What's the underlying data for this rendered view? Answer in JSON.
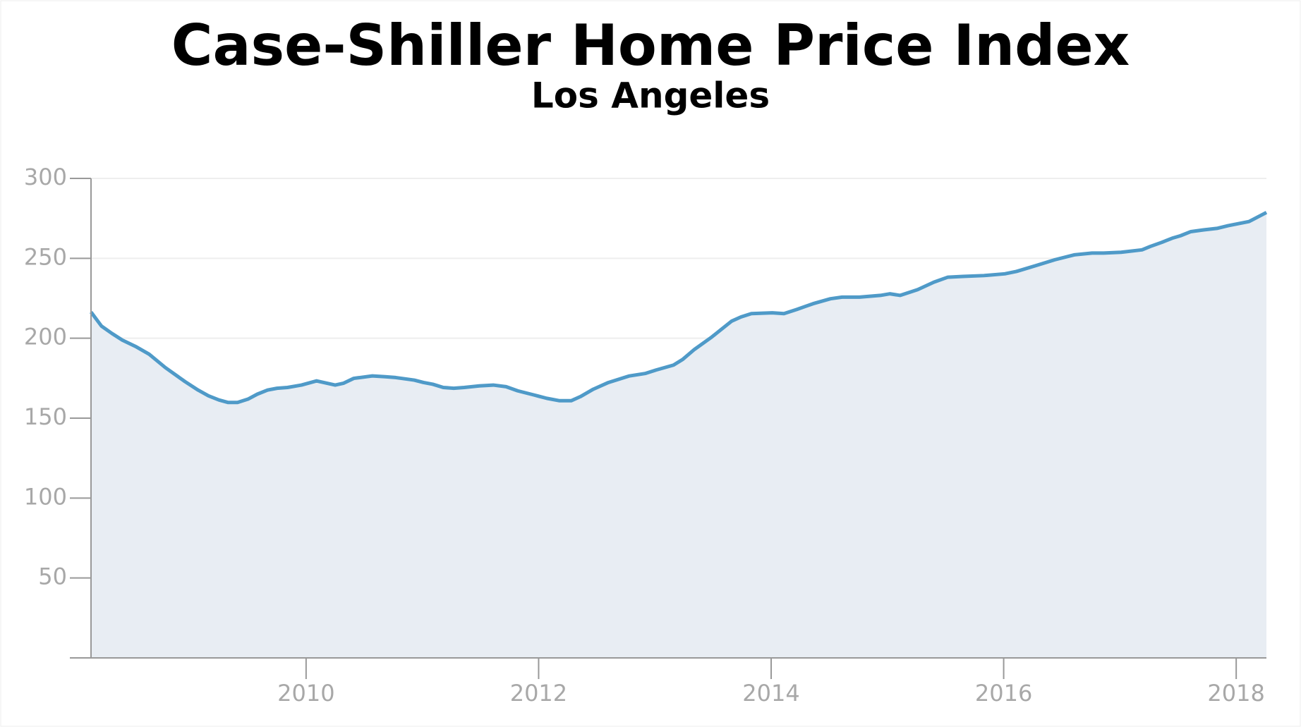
{
  "chart_data": {
    "type": "area",
    "title": "Case-Shiller Home Price Index",
    "subtitle": "Los Angeles",
    "x": [
      2008.15,
      2008.24,
      2008.33,
      2008.42,
      2008.54,
      2008.65,
      2008.79,
      2008.96,
      2009.07,
      2009.16,
      2009.25,
      2009.33,
      2009.41,
      2009.5,
      2009.58,
      2009.67,
      2009.75,
      2009.84,
      2009.96,
      2010.09,
      2010.25,
      2010.32,
      2010.41,
      2010.57,
      2010.68,
      2010.77,
      2010.87,
      2010.93,
      2011.01,
      2011.09,
      2011.18,
      2011.27,
      2011.36,
      2011.49,
      2011.61,
      2011.72,
      2011.82,
      2011.96,
      2012.07,
      2012.18,
      2012.28,
      2012.36,
      2012.47,
      2012.6,
      2012.78,
      2012.92,
      2013.01,
      2013.16,
      2013.24,
      2013.34,
      2013.49,
      2013.66,
      2013.74,
      2013.83,
      2014.01,
      2014.11,
      2014.22,
      2014.36,
      2014.51,
      2014.61,
      2014.76,
      2014.94,
      2015.02,
      2015.11,
      2015.26,
      2015.4,
      2015.52,
      2015.65,
      2015.83,
      2016.01,
      2016.11,
      2016.28,
      2016.44,
      2016.61,
      2016.76,
      2016.86,
      2017.01,
      2017.19,
      2017.26,
      2017.36,
      2017.45,
      2017.52,
      2017.61,
      2017.72,
      2017.84,
      2017.93,
      2018.11,
      2018.26
    ],
    "values": [
      216.4,
      207.6,
      203,
      198.8,
      194.6,
      190,
      181.6,
      172.8,
      167.6,
      164,
      161.4,
      159.8,
      159.8,
      161.9,
      165,
      167.6,
      168.7,
      169.2,
      170.7,
      173.3,
      170.7,
      171.8,
      174.9,
      176.4,
      175.9,
      175.4,
      174.4,
      173.8,
      172.3,
      171.2,
      169.2,
      168.7,
      169.2,
      170.2,
      170.7,
      169.7,
      167.1,
      164.5,
      162.4,
      160.9,
      160.9,
      163.5,
      168.1,
      172.3,
      176.4,
      178,
      180.1,
      183.2,
      186.8,
      193,
      200.8,
      210.7,
      213.3,
      215.4,
      215.9,
      215.4,
      218,
      221.6,
      224.7,
      225.7,
      225.7,
      226.8,
      227.8,
      226.8,
      230.4,
      235.1,
      238.2,
      238.7,
      239.2,
      240.3,
      241.8,
      245.5,
      249.1,
      252.2,
      253.3,
      253.3,
      253.8,
      255.3,
      257.4,
      260,
      262.6,
      264.1,
      266.7,
      267.8,
      268.8,
      270.4,
      273,
      278.7
    ],
    "color": "#4f9ac8",
    "fill_color": "#e8edf3",
    "xlim": [
      2008.15,
      2018.26
    ],
    "xticks": [
      2010,
      2012,
      2014,
      2016,
      2018
    ],
    "ylim": [
      0,
      300
    ],
    "yticks": [
      50,
      100,
      150,
      200,
      250,
      300
    ],
    "grid": true
  }
}
